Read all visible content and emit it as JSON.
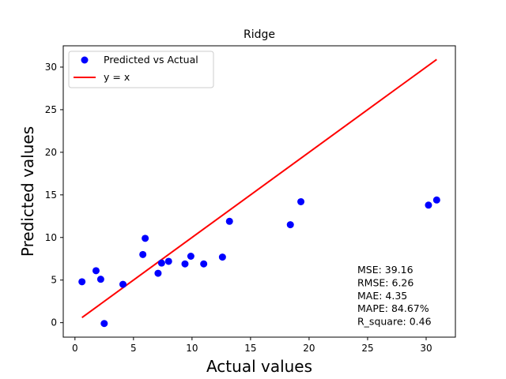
{
  "chart_data": {
    "type": "scatter",
    "title": "Ridge",
    "xlabel": "Actual values",
    "ylabel": "Predicted values",
    "xlim": [
      -1.0,
      32.5
    ],
    "ylim": [
      -1.7,
      32.5
    ],
    "xticks": [
      0,
      5,
      10,
      15,
      20,
      25,
      30
    ],
    "yticks": [
      0,
      5,
      10,
      15,
      20,
      25,
      30
    ],
    "grid": false,
    "legend_position": "top-left",
    "series": [
      {
        "name": "Predicted vs Actual",
        "type": "scatter",
        "color": "#0000ff",
        "points": [
          [
            0.6,
            4.8
          ],
          [
            1.8,
            6.1
          ],
          [
            2.2,
            5.1
          ],
          [
            2.5,
            -0.1
          ],
          [
            4.1,
            4.5
          ],
          [
            5.8,
            8.0
          ],
          [
            6.0,
            9.9
          ],
          [
            7.1,
            5.8
          ],
          [
            7.4,
            7.0
          ],
          [
            8.0,
            7.2
          ],
          [
            9.4,
            6.9
          ],
          [
            9.9,
            7.8
          ],
          [
            11.0,
            6.9
          ],
          [
            12.6,
            7.7
          ],
          [
            13.2,
            11.9
          ],
          [
            18.4,
            11.5
          ],
          [
            19.3,
            14.2
          ],
          [
            30.2,
            13.8
          ],
          [
            30.9,
            14.4
          ]
        ]
      },
      {
        "name": "y = x",
        "type": "line",
        "color": "#ff0000",
        "points": [
          [
            0.6,
            0.6
          ],
          [
            30.9,
            30.9
          ]
        ]
      }
    ],
    "annotation": [
      "MSE: 39.16",
      "RMSE: 6.26",
      "MAE: 4.35",
      "MAPE: 84.67%",
      "R_square: 0.46"
    ]
  }
}
